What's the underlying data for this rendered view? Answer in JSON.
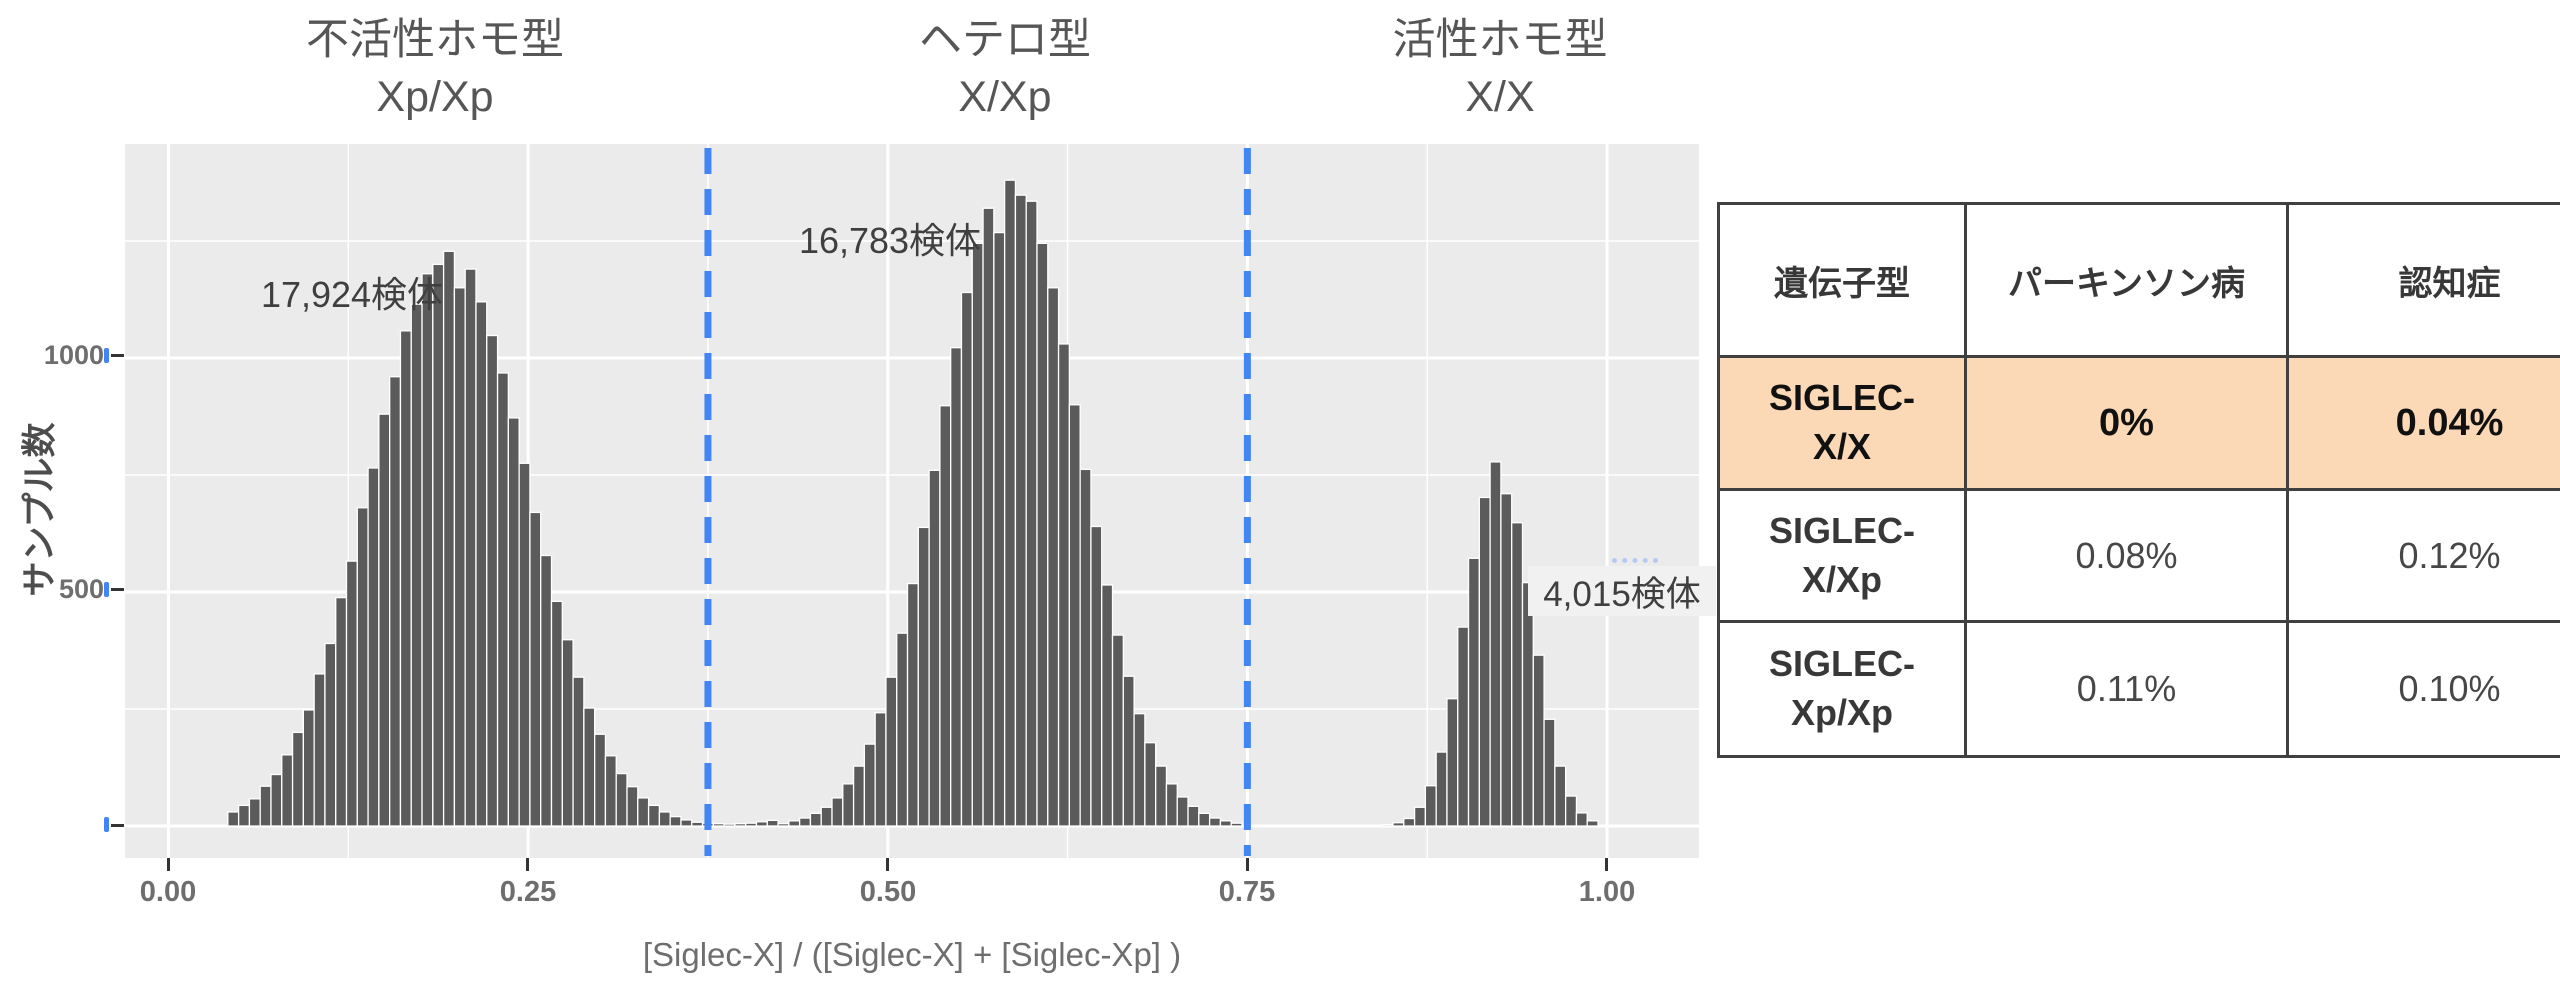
{
  "groups": [
    {
      "line1": "不活性ホモ型",
      "line2": "Xp/Xp",
      "annotation": "17,924検体"
    },
    {
      "line1": "ヘテロ型",
      "line2": "X/Xp",
      "annotation": "16,783検体"
    },
    {
      "line1": "活性ホモ型",
      "line2": "X/X",
      "annotation": "4,015検体"
    }
  ],
  "axes": {
    "y_title": "サンプル数",
    "x_title": "[Siglec-X] / ([Siglec-X] + [Siglec-Xp] )",
    "y_tick_labels": [
      "1000",
      "500"
    ],
    "x_tick_labels": [
      "0.00",
      "0.25",
      "0.50",
      "0.75",
      "1.00"
    ]
  },
  "table": {
    "header": [
      "遺伝子型",
      "パーキンソン病",
      "認知症"
    ],
    "rows": [
      {
        "genotype_line1": "SIGLEC-",
        "genotype_line2": "X/X",
        "parkinson": "0%",
        "dementia": "0.04%",
        "highlight": true
      },
      {
        "genotype_line1": "SIGLEC-",
        "genotype_line2": "X/Xp",
        "parkinson": "0.08%",
        "dementia": "0.12%",
        "highlight": false
      },
      {
        "genotype_line1": "SIGLEC-",
        "genotype_line2": "Xp/Xp",
        "parkinson": "0.11%",
        "dementia": "0.10%",
        "highlight": false
      }
    ]
  },
  "colors": {
    "panel_background": "#EBEBEB",
    "bar_fill": "#5B5B5B",
    "bar_stroke": "#FFFFFF",
    "gridline": "#FFFFFF",
    "dashed_line": "#4285F4",
    "highlight_row": "#FBD8B6",
    "table_border": "#404040"
  },
  "chart_data": {
    "type": "bar",
    "subtype": "histogram",
    "title": "",
    "xlabel": "[Siglec-X] / ([Siglec-X] + [Siglec-Xp] )",
    "ylabel": "サンプル数",
    "xlim": [
      -0.03,
      1.064
    ],
    "ylim": [
      0,
      1455
    ],
    "x_ticks": [
      0.0,
      0.25,
      0.5,
      0.75,
      1.0
    ],
    "y_ticks": [
      0,
      500,
      1000
    ],
    "x_minor_gridlines": [
      0.125,
      0.375,
      0.625,
      0.875
    ],
    "y_minor_gridlines": [
      250,
      750,
      1250
    ],
    "grid": true,
    "legend_position": "none",
    "bin_width": 0.0075,
    "dashed_vlines_x": [
      0.375,
      0.75
    ],
    "group_annotations": [
      {
        "text": "17,924検体",
        "x": 0.127,
        "y": 1145
      },
      {
        "text": "16,783検体",
        "x": 0.5,
        "y": 1270
      },
      {
        "text": "4,015検体",
        "x": 0.965,
        "y": 500
      }
    ],
    "bars": [
      [
        0.045,
        30
      ],
      [
        0.0525,
        44
      ],
      [
        0.06,
        58
      ],
      [
        0.0675,
        85
      ],
      [
        0.075,
        110
      ],
      [
        0.0825,
        152
      ],
      [
        0.09,
        200
      ],
      [
        0.0975,
        248
      ],
      [
        0.105,
        325
      ],
      [
        0.1125,
        390
      ],
      [
        0.12,
        488
      ],
      [
        0.1275,
        566
      ],
      [
        0.135,
        680
      ],
      [
        0.1425,
        765
      ],
      [
        0.15,
        880
      ],
      [
        0.1575,
        960
      ],
      [
        0.165,
        1058
      ],
      [
        0.1725,
        1115
      ],
      [
        0.18,
        1180
      ],
      [
        0.1875,
        1200
      ],
      [
        0.195,
        1228
      ],
      [
        0.2025,
        1150
      ],
      [
        0.21,
        1190
      ],
      [
        0.2175,
        1120
      ],
      [
        0.225,
        1048
      ],
      [
        0.2325,
        968
      ],
      [
        0.24,
        872
      ],
      [
        0.2475,
        775
      ],
      [
        0.255,
        670
      ],
      [
        0.2625,
        578
      ],
      [
        0.27,
        480
      ],
      [
        0.2775,
        398
      ],
      [
        0.285,
        318
      ],
      [
        0.2925,
        252
      ],
      [
        0.3,
        196
      ],
      [
        0.3075,
        150
      ],
      [
        0.315,
        112
      ],
      [
        0.3225,
        84
      ],
      [
        0.33,
        60
      ],
      [
        0.3375,
        44
      ],
      [
        0.345,
        30
      ],
      [
        0.3525,
        20
      ],
      [
        0.36,
        13
      ],
      [
        0.3675,
        8
      ],
      [
        0.375,
        6
      ],
      [
        0.3825,
        5
      ],
      [
        0.39,
        4
      ],
      [
        0.3975,
        5
      ],
      [
        0.405,
        6
      ],
      [
        0.4125,
        9
      ],
      [
        0.42,
        12
      ],
      [
        0.4275,
        5
      ],
      [
        0.435,
        11
      ],
      [
        0.4425,
        17
      ],
      [
        0.45,
        27
      ],
      [
        0.4575,
        40
      ],
      [
        0.465,
        60
      ],
      [
        0.4725,
        90
      ],
      [
        0.48,
        128
      ],
      [
        0.4875,
        175
      ],
      [
        0.495,
        242
      ],
      [
        0.5025,
        318
      ],
      [
        0.51,
        412
      ],
      [
        0.5175,
        518
      ],
      [
        0.525,
        638
      ],
      [
        0.5325,
        760
      ],
      [
        0.54,
        898
      ],
      [
        0.5475,
        1022
      ],
      [
        0.555,
        1140
      ],
      [
        0.5625,
        1245
      ],
      [
        0.57,
        1320
      ],
      [
        0.5775,
        1268
      ],
      [
        0.585,
        1380
      ],
      [
        0.5925,
        1348
      ],
      [
        0.6,
        1335
      ],
      [
        0.6075,
        1245
      ],
      [
        0.615,
        1150
      ],
      [
        0.6225,
        1030
      ],
      [
        0.63,
        900
      ],
      [
        0.6375,
        762
      ],
      [
        0.645,
        640
      ],
      [
        0.6525,
        515
      ],
      [
        0.66,
        408
      ],
      [
        0.6675,
        320
      ],
      [
        0.675,
        240
      ],
      [
        0.6825,
        178
      ],
      [
        0.69,
        128
      ],
      [
        0.6975,
        90
      ],
      [
        0.705,
        62
      ],
      [
        0.7125,
        42
      ],
      [
        0.72,
        27
      ],
      [
        0.7275,
        17
      ],
      [
        0.735,
        11
      ],
      [
        0.7425,
        6
      ],
      [
        0.8475,
        3
      ],
      [
        0.855,
        7
      ],
      [
        0.8625,
        16
      ],
      [
        0.87,
        40
      ],
      [
        0.8775,
        86
      ],
      [
        0.885,
        158
      ],
      [
        0.8925,
        272
      ],
      [
        0.9,
        425
      ],
      [
        0.9075,
        572
      ],
      [
        0.915,
        702
      ],
      [
        0.9225,
        778
      ],
      [
        0.93,
        710
      ],
      [
        0.9375,
        648
      ],
      [
        0.945,
        520
      ],
      [
        0.9525,
        365
      ],
      [
        0.96,
        228
      ],
      [
        0.9675,
        128
      ],
      [
        0.975,
        64
      ],
      [
        0.9825,
        28
      ],
      [
        0.99,
        11
      ]
    ]
  }
}
